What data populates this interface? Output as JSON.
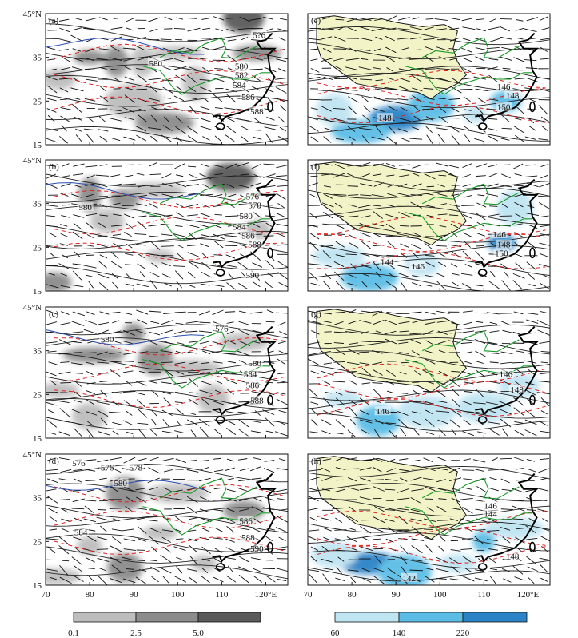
{
  "chart_data": {
    "type": "heatmap",
    "colors": {
      "gray_levels": [
        "#bdbdbd",
        "#8c8c8c",
        "#5a5a5a"
      ],
      "blue_levels": [
        "#bfe4f2",
        "#5bbde6",
        "#2b83c6"
      ],
      "plateau": "#f2f3c6",
      "river": "#1a9a2a",
      "contour": "#222222",
      "warm_contour": "#e0211f",
      "cool_contour": "#2a4fb0"
    },
    "panels": [
      {
        "label": "(a)",
        "side": "left",
        "contours": [
          {
            "label": "5?6",
            "lon": 118.5,
            "lat": 40.0
          },
          {
            "label": "580",
            "lon": 95.0,
            "lat": 33.5
          },
          {
            "label": "580",
            "lon": 114.5,
            "lat": 32.8
          },
          {
            "label": "582",
            "lon": 114.5,
            "lat": 30.8
          },
          {
            "label": "584",
            "lon": 114.0,
            "lat": 28.5
          },
          {
            "label": "586",
            "lon": 116.0,
            "lat": 25.8
          },
          {
            "label": "588",
            "lon": 118.0,
            "lat": 22.5
          }
        ],
        "shading": [
          {
            "lon": 80,
            "lat": 35,
            "level": 2
          },
          {
            "lon": 86,
            "lat": 34,
            "level": 2
          },
          {
            "lon": 92,
            "lat": 34,
            "level": 1
          },
          {
            "lon": 100,
            "lat": 36,
            "level": 1
          },
          {
            "lon": 73,
            "lat": 30,
            "level": 1
          },
          {
            "lon": 90,
            "lat": 25,
            "level": 1
          },
          {
            "lon": 97,
            "lat": 20,
            "level": 2
          },
          {
            "lon": 104,
            "lat": 29,
            "level": 1
          },
          {
            "lon": 115,
            "lat": 44,
            "level": 3
          },
          {
            "lon": 118,
            "lat": 36,
            "level": 2
          }
        ]
      },
      {
        "label": "(b)",
        "side": "left",
        "contours": [
          {
            "label": "580",
            "lon": 79.0,
            "lat": 34.0
          },
          {
            "label": "576",
            "lon": 117.0,
            "lat": 36.5
          },
          {
            "label": "578",
            "lon": 117.5,
            "lat": 34.5
          },
          {
            "label": "580",
            "lon": 115.5,
            "lat": 32.0
          },
          {
            "label": "584",
            "lon": 114.0,
            "lat": 29.5
          },
          {
            "label": "586",
            "lon": 116.0,
            "lat": 27.5
          },
          {
            "label": "588",
            "lon": 117.5,
            "lat": 25.5
          },
          {
            "label": "590",
            "lon": 117.0,
            "lat": 18.5
          }
        ],
        "shading": [
          {
            "lon": 112,
            "lat": 41,
            "level": 3
          },
          {
            "lon": 80,
            "lat": 37,
            "level": 2
          },
          {
            "lon": 88,
            "lat": 36,
            "level": 2
          },
          {
            "lon": 95,
            "lat": 38,
            "level": 1
          },
          {
            "lon": 84,
            "lat": 31,
            "level": 1
          },
          {
            "lon": 96,
            "lat": 23,
            "level": 1
          },
          {
            "lon": 72,
            "lat": 17,
            "level": 2
          },
          {
            "lon": 118,
            "lat": 29,
            "level": 1
          }
        ]
      },
      {
        "label": "(c)",
        "side": "left",
        "contours": [
          {
            "label": "580",
            "lon": 84.0,
            "lat": 37.5
          },
          {
            "label": "576",
            "lon": 110.0,
            "lat": 40.0
          },
          {
            "label": "580",
            "lon": 117.5,
            "lat": 32.0
          },
          {
            "label": "584",
            "lon": 116.5,
            "lat": 29.5
          },
          {
            "label": "586",
            "lon": 117.0,
            "lat": 27.0
          },
          {
            "label": "588",
            "lon": 118.0,
            "lat": 23.5
          }
        ],
        "shading": [
          {
            "lon": 90,
            "lat": 39,
            "level": 2
          },
          {
            "lon": 81,
            "lat": 34,
            "level": 2
          },
          {
            "lon": 95,
            "lat": 33,
            "level": 2
          },
          {
            "lon": 103,
            "lat": 31,
            "level": 1
          },
          {
            "lon": 80,
            "lat": 20,
            "level": 1
          },
          {
            "lon": 73,
            "lat": 26,
            "level": 1
          },
          {
            "lon": 115,
            "lat": 37,
            "level": 1
          },
          {
            "lon": 108,
            "lat": 24,
            "level": 1
          }
        ]
      },
      {
        "label": "(d)",
        "side": "left",
        "contours": [
          {
            "label": "576",
            "lon": 77.5,
            "lat": 42.8
          },
          {
            "label": "576",
            "lon": 84.0,
            "lat": 41.8
          },
          {
            "label": "578",
            "lon": 90.5,
            "lat": 41.8
          },
          {
            "label": "580",
            "lon": 87.0,
            "lat": 38.2
          },
          {
            "label": "584",
            "lon": 78.0,
            "lat": 27.0
          },
          {
            "label": "586",
            "lon": 115.5,
            "lat": 29.5
          },
          {
            "label": "588",
            "lon": 116.0,
            "lat": 25.8
          },
          {
            "label": "590",
            "lon": 118.0,
            "lat": 23.2
          }
        ],
        "shading": [
          {
            "lon": 88,
            "lat": 36,
            "level": 2
          },
          {
            "lon": 100,
            "lat": 36,
            "level": 1
          },
          {
            "lon": 115,
            "lat": 32,
            "level": 2
          },
          {
            "lon": 80,
            "lat": 24,
            "level": 1
          },
          {
            "lon": 88,
            "lat": 19,
            "level": 2
          },
          {
            "lon": 72,
            "lat": 17,
            "level": 1
          },
          {
            "lon": 106,
            "lat": 20,
            "level": 1
          },
          {
            "lon": 96,
            "lat": 27,
            "level": 1
          }
        ]
      },
      {
        "label": "(e)",
        "side": "right",
        "contours": [
          {
            "label": "146",
            "lon": 114.5,
            "lat": 28.2
          },
          {
            "label": "148",
            "lon": 116.5,
            "lat": 26.2
          },
          {
            "label": "150",
            "lon": 114.5,
            "lat": 23.5
          },
          {
            "label": "148",
            "lon": 87.5,
            "lat": 21.0
          }
        ],
        "shading": [
          {
            "lon": 90,
            "lat": 21,
            "level": 3
          },
          {
            "lon": 82,
            "lat": 18,
            "level": 2
          },
          {
            "lon": 98,
            "lat": 24,
            "level": 2
          },
          {
            "lon": 115,
            "lat": 25,
            "level": 2
          },
          {
            "lon": 76,
            "lat": 23,
            "level": 1
          },
          {
            "lon": 108,
            "lat": 22,
            "level": 1
          }
        ]
      },
      {
        "label": "(f)",
        "side": "right",
        "contours": [
          {
            "label": "144",
            "lon": 88.0,
            "lat": 21.5
          },
          {
            "label": "146",
            "lon": 95.0,
            "lat": 20.5
          },
          {
            "label": "146",
            "lon": 113.5,
            "lat": 27.8
          },
          {
            "label": "148",
            "lon": 114.5,
            "lat": 25.5
          },
          {
            "label": "150",
            "lon": 114.0,
            "lat": 23.5
          }
        ],
        "shading": [
          {
            "lon": 114,
            "lat": 26,
            "level": 3
          },
          {
            "lon": 84,
            "lat": 18,
            "level": 2
          },
          {
            "lon": 77,
            "lat": 23,
            "level": 1
          },
          {
            "lon": 96,
            "lat": 21,
            "level": 1
          },
          {
            "lon": 117,
            "lat": 34,
            "level": 1
          }
        ]
      },
      {
        "label": "(g)",
        "side": "right",
        "contours": [
          {
            "label": "146",
            "lon": 87.0,
            "lat": 21.0
          },
          {
            "label": "146",
            "lon": 115.0,
            "lat": 29.5
          },
          {
            "label": "148",
            "lon": 117.5,
            "lat": 26.0
          }
        ],
        "shading": [
          {
            "lon": 86,
            "lat": 19,
            "level": 2
          },
          {
            "lon": 110,
            "lat": 22,
            "level": 1
          },
          {
            "lon": 97,
            "lat": 21,
            "level": 1
          },
          {
            "lon": 118,
            "lat": 27,
            "level": 1
          },
          {
            "lon": 78,
            "lat": 24,
            "level": 1
          }
        ]
      },
      {
        "label": "(h)",
        "side": "right",
        "contours": [
          {
            "label": "146",
            "lon": 111.5,
            "lat": 33.0
          },
          {
            "label": "144",
            "lon": 111.5,
            "lat": 31.2
          },
          {
            "label": "148",
            "lon": 116.5,
            "lat": 21.5
          },
          {
            "label": "142",
            "lon": 93.0,
            "lat": 16.5
          }
        ],
        "shading": [
          {
            "lon": 84,
            "lat": 20,
            "level": 3
          },
          {
            "lon": 92,
            "lat": 18,
            "level": 2
          },
          {
            "lon": 110,
            "lat": 25,
            "level": 2
          },
          {
            "lon": 76,
            "lat": 22,
            "level": 1
          },
          {
            "lon": 104,
            "lat": 20,
            "level": 1
          },
          {
            "lon": 117,
            "lat": 28,
            "level": 1
          }
        ]
      }
    ],
    "axes": {
      "x_ticks": [
        "70",
        "80",
        "90",
        "100",
        "110",
        "120°E"
      ],
      "x_values": [
        70,
        80,
        90,
        100,
        110,
        120
      ],
      "y_ticks": [
        "45°N",
        "35",
        "25",
        "15"
      ],
      "y_values": [
        45,
        35,
        25,
        15
      ],
      "xlim": [
        70,
        125
      ],
      "ylim": [
        15,
        45
      ]
    },
    "colorbars": [
      {
        "side": "left",
        "labels": [
          "0.1",
          "2.5",
          "5.0"
        ],
        "values": [
          0.1,
          2.5,
          5.0
        ]
      },
      {
        "side": "right",
        "labels": [
          "60",
          "140",
          "220"
        ],
        "values": [
          60,
          140,
          220
        ]
      }
    ]
  }
}
